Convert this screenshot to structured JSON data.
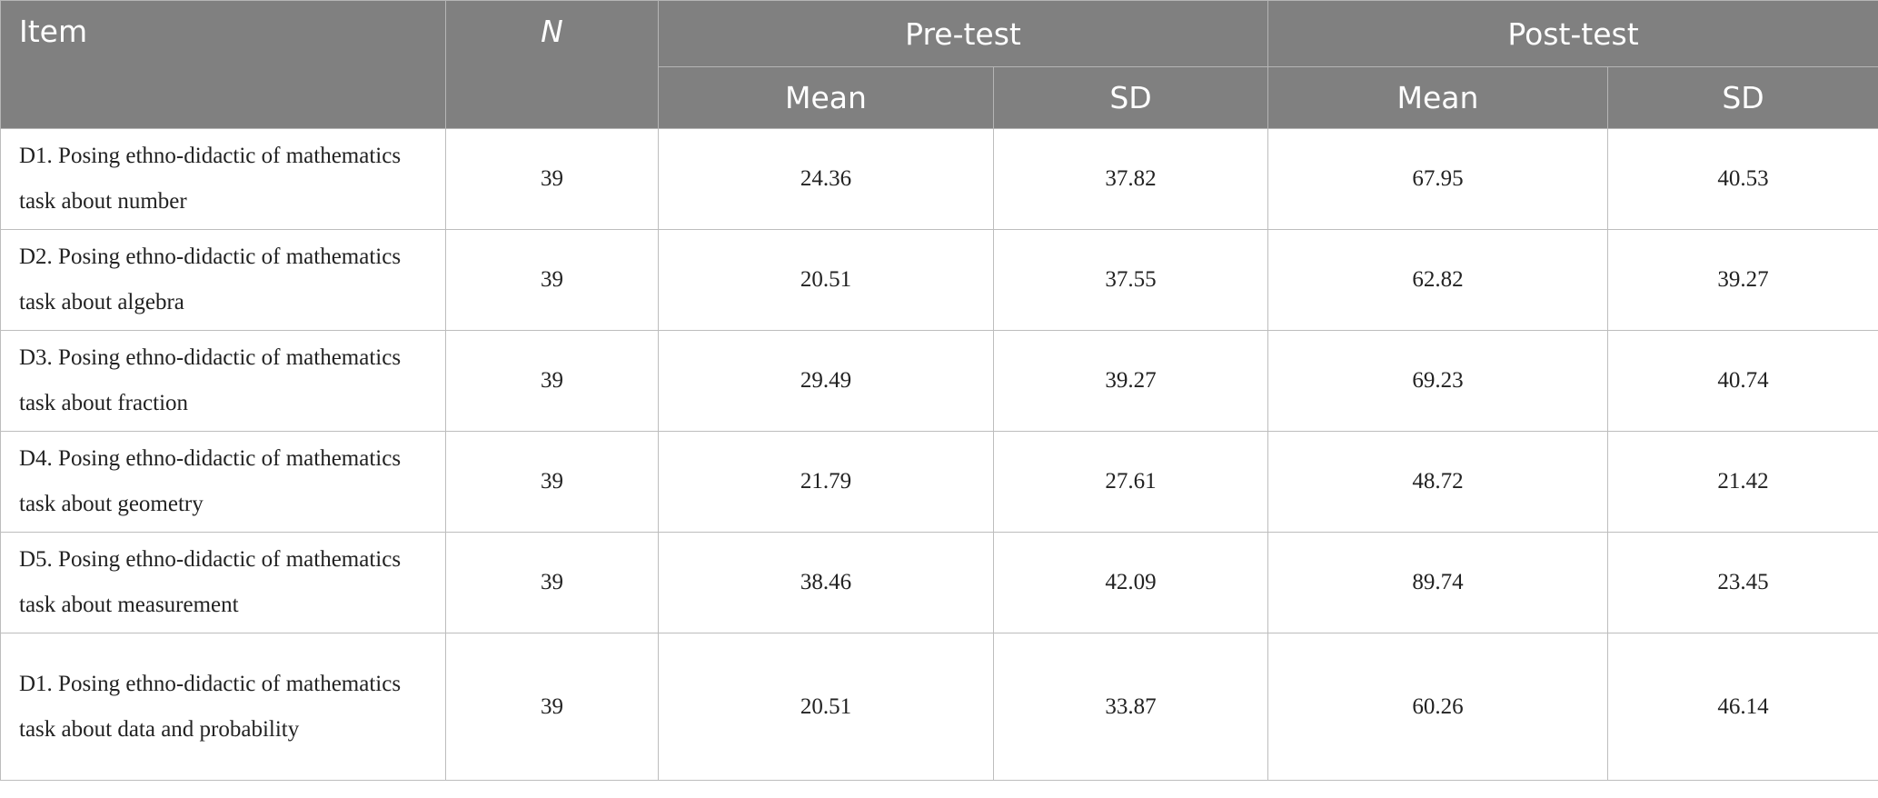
{
  "table": {
    "header": {
      "item": "Item",
      "n": "N",
      "pretest": "Pre-test",
      "posttest": "Post-test",
      "sub": [
        "Mean",
        "SD",
        "Mean",
        "SD"
      ]
    },
    "rows": [
      [
        "D1. Posing ethno-didactic of mathematics task about number",
        "39",
        "24.36",
        "37.82",
        "67.95",
        "40.53"
      ],
      [
        "D2. Posing ethno-didactic of mathematics task about algebra",
        "39",
        "20.51",
        "37.55",
        "62.82",
        "39.27"
      ],
      [
        "D3. Posing ethno-didactic of mathematics task about fraction",
        "39",
        "29.49",
        "39.27",
        "69.23",
        "40.74"
      ],
      [
        "D4. Posing ethno-didactic of mathematics task about geometry",
        "39",
        "21.79",
        "27.61",
        "48.72",
        "21.42"
      ],
      [
        "D5. Posing ethno-didactic of mathematics task about measurement",
        "39",
        "38.46",
        "42.09",
        "89.74",
        "23.45"
      ],
      [
        "D1. Posing ethno-didactic of mathematics task about data and probability",
        "39",
        "20.51",
        "33.87",
        "60.26",
        "46.14"
      ]
    ]
  }
}
